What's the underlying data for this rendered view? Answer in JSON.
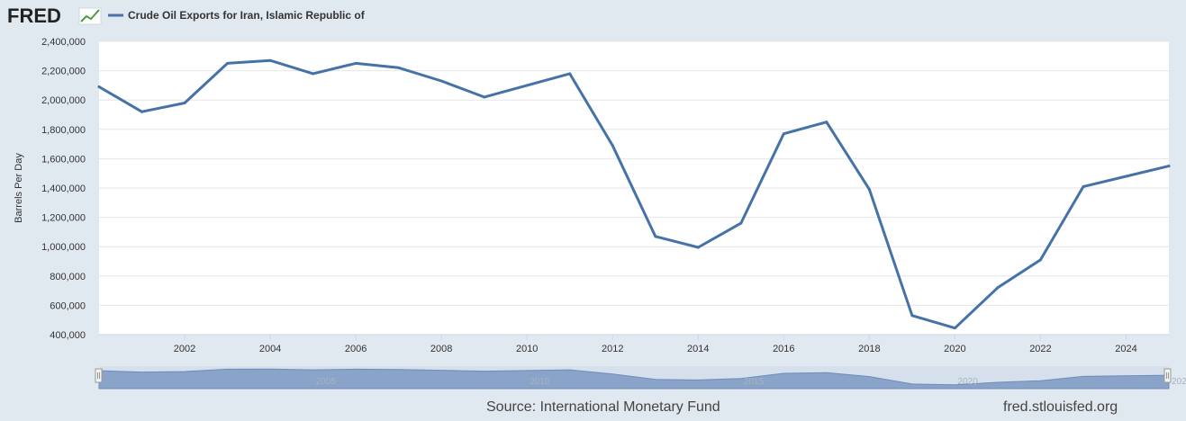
{
  "logo": {
    "text": "FRED",
    "icon": "trend-line-icon"
  },
  "legend": {
    "label": "Crude Oil Exports for Iran, Islamic Republic of",
    "color": "#4572a7"
  },
  "footer": {
    "source": "Source: International Monetary Fund",
    "site": "fred.stlouisfed.org"
  },
  "navigator": {
    "tick_labels": [
      "2005",
      "2010",
      "2015",
      "2020",
      "202"
    ]
  },
  "chart_data": {
    "type": "line",
    "ylabel": "Barrels Per Day",
    "xlim": [
      2000,
      2025
    ],
    "ylim": [
      400000,
      2400000
    ],
    "yticks": [
      400000,
      600000,
      800000,
      1000000,
      1200000,
      1400000,
      1600000,
      1800000,
      2000000,
      2200000,
      2400000
    ],
    "ytick_labels": [
      "400,000",
      "600,000",
      "800,000",
      "1,000,000",
      "1,200,000",
      "1,400,000",
      "1,600,000",
      "1,800,000",
      "2,000,000",
      "2,200,000",
      "2,400,000"
    ],
    "xticks": [
      2002,
      2004,
      2006,
      2008,
      2010,
      2012,
      2014,
      2016,
      2018,
      2020,
      2022,
      2024
    ],
    "xtick_labels": [
      "2002",
      "2004",
      "2006",
      "2008",
      "2010",
      "2012",
      "2014",
      "2016",
      "2018",
      "2020",
      "2022",
      "2024"
    ],
    "grid": true,
    "series": [
      {
        "name": "Crude Oil Exports for Iran, Islamic Republic of",
        "color": "#4572a7",
        "x": [
          2000,
          2001,
          2002,
          2003,
          2004,
          2005,
          2006,
          2007,
          2008,
          2009,
          2010,
          2011,
          2012,
          2013,
          2014,
          2015,
          2016,
          2017,
          2018,
          2019,
          2020,
          2021,
          2022,
          2023,
          2024,
          2025
        ],
        "y": [
          2090000,
          1920000,
          1980000,
          2250000,
          2270000,
          2180000,
          2250000,
          2220000,
          2130000,
          2020000,
          2100000,
          2180000,
          1690000,
          1070000,
          995000,
          1160000,
          1770000,
          1850000,
          1390000,
          530000,
          445000,
          720000,
          910000,
          1410000,
          1480000,
          1550000
        ]
      }
    ]
  }
}
